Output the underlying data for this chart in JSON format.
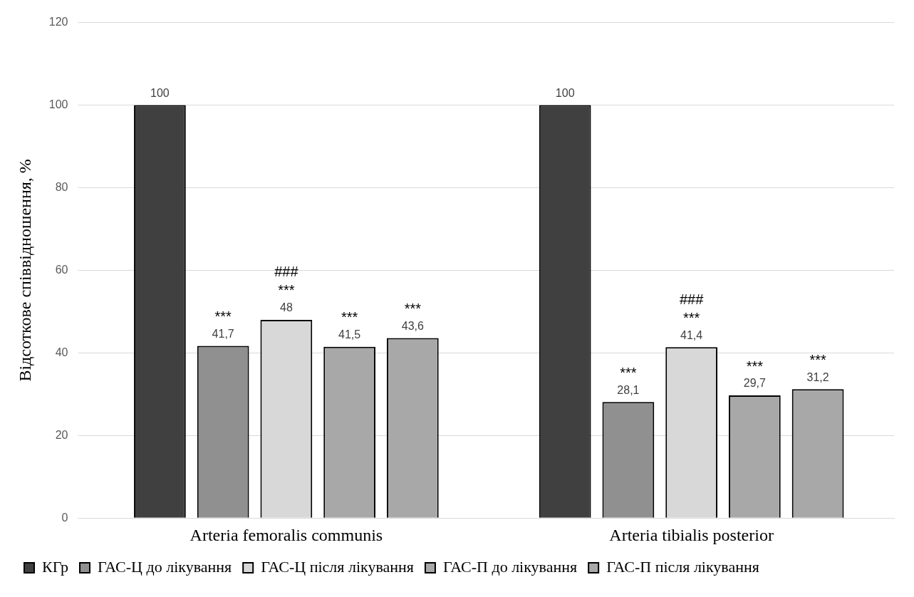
{
  "chart_data": {
    "type": "bar",
    "ylabel": "Відсоткове співвідношення, %",
    "categories": [
      "Arteria femoralis communis",
      "Arteria tibialis posterior"
    ],
    "series": [
      {
        "name": "КГр",
        "color": "#404040",
        "values": [
          100,
          100
        ],
        "value_labels": [
          "100",
          "100"
        ]
      },
      {
        "name": "ГАС-Ц до лікування",
        "color": "#909090",
        "values": [
          41.7,
          28.1
        ],
        "value_labels": [
          "41,7",
          "28,1"
        ]
      },
      {
        "name": "ГАС-Ц після лікування",
        "color": "#d8d8d8",
        "values": [
          48,
          41.4
        ],
        "value_labels": [
          "48",
          "41,4"
        ]
      },
      {
        "name": "ГАС-П до лікування",
        "color": "#a8a8a8",
        "values": [
          41.5,
          29.7
        ],
        "value_labels": [
          "41,5",
          "29,7"
        ]
      },
      {
        "name": "ГАС-П після лікування",
        "color": "#a8a8a8",
        "values": [
          43.6,
          31.2
        ],
        "value_labels": [
          "43,6",
          "31,2"
        ]
      }
    ],
    "ylim": [
      0,
      120
    ],
    "yticks": [
      0,
      20,
      40,
      60,
      80,
      100,
      120
    ],
    "grid": "y",
    "legend": "bottom",
    "annotations": [
      "***",
      "***",
      "###",
      "***",
      "***",
      "***",
      "***",
      "###",
      "***",
      "***"
    ]
  }
}
